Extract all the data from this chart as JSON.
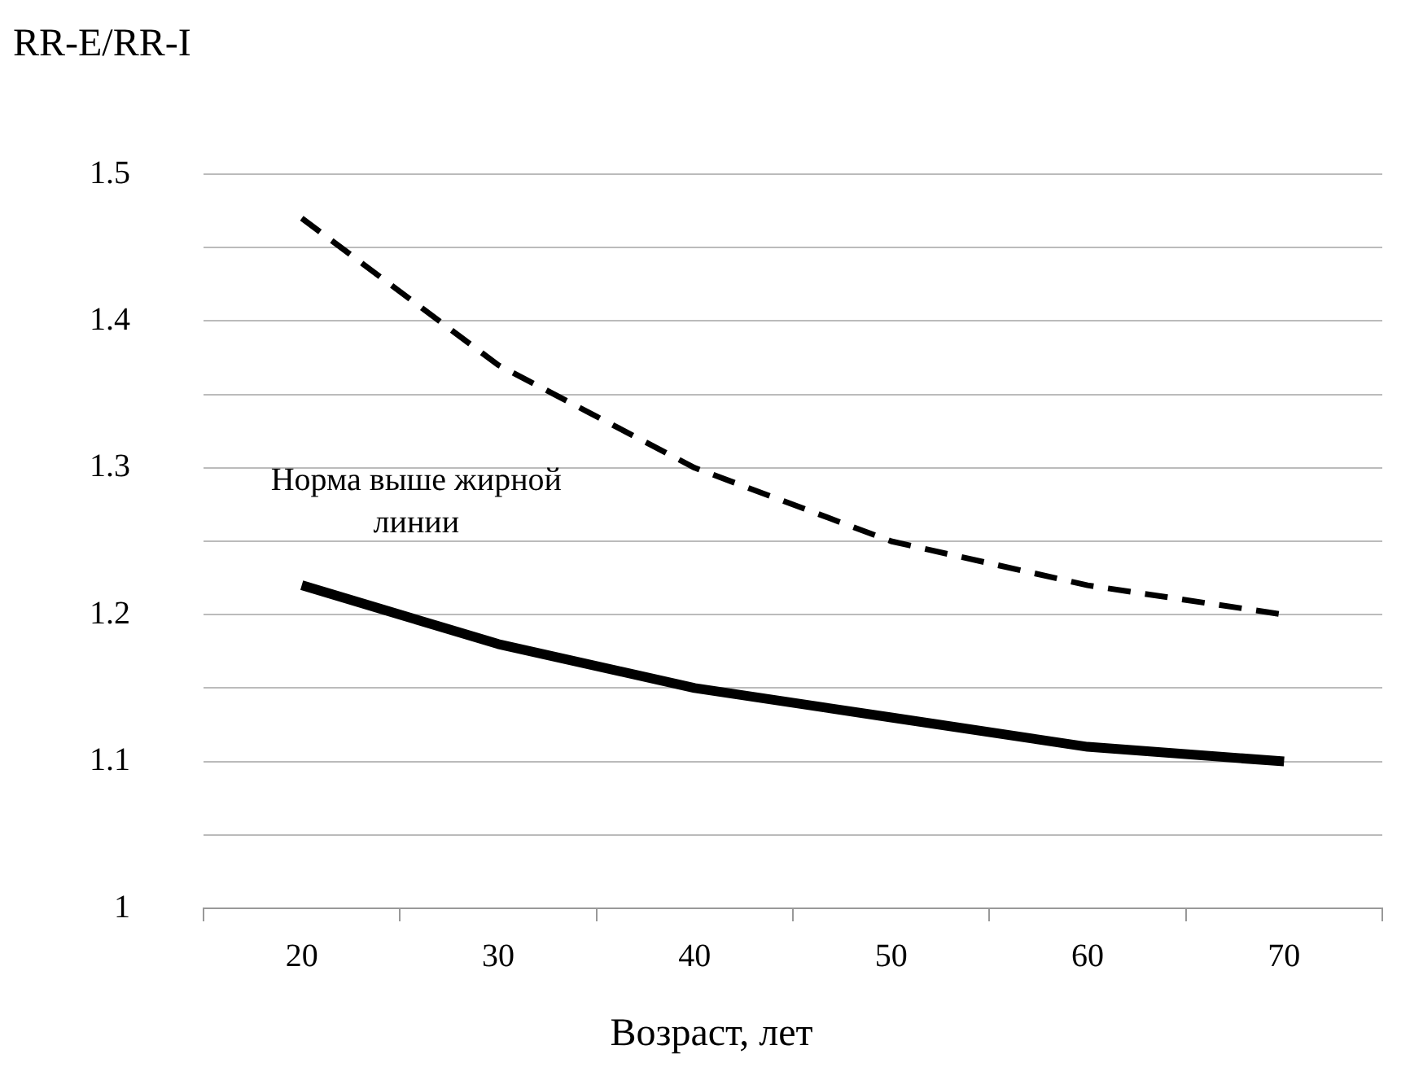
{
  "chart_data": {
    "type": "line",
    "ylabel": "RR-E/RR-I",
    "xlabel": "Возраст, лет",
    "categories": [
      "20",
      "30",
      "40",
      "50",
      "60",
      "70"
    ],
    "series": [
      {
        "color": "#000000",
        "line_style": "dashed",
        "values": [
          1.47,
          1.37,
          1.3,
          1.25,
          1.22,
          1.2
        ]
      },
      {
        "color": "#000000",
        "line_style": "solid",
        "values": [
          1.22,
          1.18,
          1.15,
          1.13,
          1.11,
          1.1
        ]
      }
    ],
    "ylim": [
      1,
      1.5
    ],
    "yticks": [
      1,
      {
        "value": 1.05,
        "label": null
      },
      1.1,
      {
        "value": 1.15,
        "label": null
      },
      1.2,
      {
        "value": 1.25,
        "label": null
      },
      1.3,
      {
        "value": 1.35,
        "label": null
      },
      1.4,
      {
        "value": 1.45,
        "label": null
      },
      1.5
    ],
    "grid": "y",
    "legend": false,
    "marker": "none",
    "annotations": [
      "Норма выше жирной линии"
    ]
  }
}
